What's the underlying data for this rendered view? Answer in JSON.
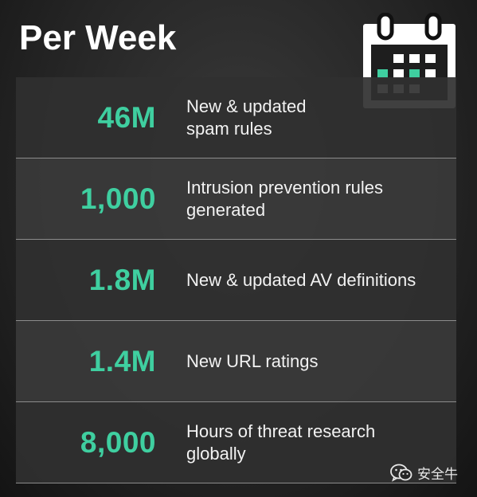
{
  "header": {
    "title": "Per Week"
  },
  "stats": [
    {
      "value": "46M",
      "description": "New & updated spam rules",
      "lines": [
        "New & updated",
        "spam rules"
      ]
    },
    {
      "value": "1,000",
      "description": "Intrusion prevention rules generated",
      "lines": [
        "Intrusion prevention rules",
        "generated"
      ]
    },
    {
      "value": "1.8M",
      "description": "New & updated AV definitions",
      "lines": [
        "New & updated AV definitions"
      ]
    },
    {
      "value": "1.4M",
      "description": "New URL ratings",
      "lines": [
        "New URL ratings"
      ]
    },
    {
      "value": "8,000",
      "description": "Hours of threat research globally",
      "lines": [
        "Hours of threat research",
        "globally"
      ]
    }
  ],
  "watermark": {
    "text": "安全牛",
    "icon": "wechat-icon"
  },
  "decor": {
    "calendar_icon": "calendar-icon"
  },
  "colors": {
    "accent": "#3fcfa0",
    "text": "#f2f2f2",
    "title": "#ffffff"
  }
}
